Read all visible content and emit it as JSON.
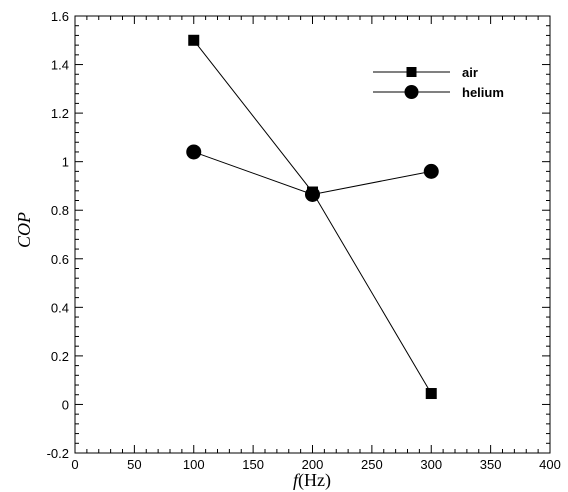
{
  "chart_data": {
    "type": "line",
    "xlabel_italic": "f",
    "xlabel_unit": "(Hz)",
    "ylabel": "COP",
    "xlim": [
      0,
      400
    ],
    "ylim": [
      -0.2,
      1.6
    ],
    "xticks": [
      "0",
      "50",
      "100",
      "150",
      "200",
      "250",
      "300",
      "350",
      "400"
    ],
    "yticks": [
      "-0.2",
      "0",
      "0.2",
      "0.4",
      "0.6",
      "0.8",
      "1",
      "1.2",
      "1.4",
      "1.6"
    ],
    "grid": false,
    "legend_position": "top-right",
    "x": [
      100,
      200,
      300
    ],
    "series": [
      {
        "name": "air",
        "marker": "square",
        "values": [
          1.5,
          0.875,
          0.045
        ]
      },
      {
        "name": "helium",
        "marker": "circle",
        "values": [
          1.04,
          0.865,
          0.96
        ]
      }
    ]
  }
}
